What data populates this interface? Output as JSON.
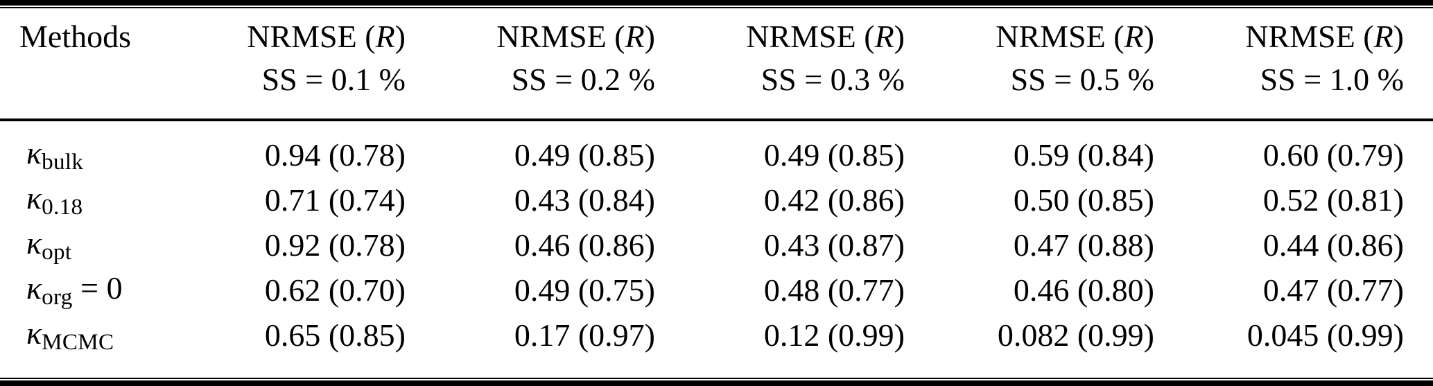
{
  "colors": {
    "text": "#000000",
    "background": "#ffffff",
    "rule": "#000000"
  },
  "table": {
    "header": {
      "method_col": "Methods",
      "cols": [
        {
          "metric_pre": "NRMSE (",
          "metric_italic": "R",
          "metric_post": ")",
          "condition": "SS = 0.1 %"
        },
        {
          "metric_pre": "NRMSE (",
          "metric_italic": "R",
          "metric_post": ")",
          "condition": "SS = 0.2 %"
        },
        {
          "metric_pre": "NRMSE (",
          "metric_italic": "R",
          "metric_post": ")",
          "condition": "SS = 0.3 %"
        },
        {
          "metric_pre": "NRMSE (",
          "metric_italic": "R",
          "metric_post": ")",
          "condition": "SS = 0.5 %"
        },
        {
          "metric_pre": "NRMSE (",
          "metric_italic": "R",
          "metric_post": ")",
          "condition": "SS = 1.0 %"
        }
      ]
    },
    "rows": [
      {
        "label": {
          "symbol": "κ",
          "subscript": "bulk",
          "suffix": ""
        },
        "values": [
          "0.94 (0.78)",
          "0.49 (0.85)",
          "0.49 (0.85)",
          "0.59 (0.84)",
          "0.60 (0.79)"
        ]
      },
      {
        "label": {
          "symbol": "κ",
          "subscript": "0.18",
          "suffix": ""
        },
        "values": [
          "0.71 (0.74)",
          "0.43 (0.84)",
          "0.42 (0.86)",
          "0.50 (0.85)",
          "0.52 (0.81)"
        ]
      },
      {
        "label": {
          "symbol": "κ",
          "subscript": "opt",
          "suffix": ""
        },
        "values": [
          "0.92 (0.78)",
          "0.46 (0.86)",
          "0.43 (0.87)",
          "0.47 (0.88)",
          "0.44 (0.86)"
        ]
      },
      {
        "label": {
          "symbol": "κ",
          "subscript": "org",
          "suffix": " = 0"
        },
        "values": [
          "0.62 (0.70)",
          "0.49 (0.75)",
          "0.48 (0.77)",
          "0.46 (0.80)",
          "0.47 (0.77)"
        ]
      },
      {
        "label": {
          "symbol": "κ",
          "subscript": "MCMC",
          "suffix": ""
        },
        "values": [
          "0.65 (0.85)",
          "0.17 (0.97)",
          "0.12 (0.99)",
          "0.082 (0.99)",
          "0.045 (0.99)"
        ]
      }
    ]
  },
  "chart_data": {
    "type": "table",
    "columns": [
      "Methods",
      "NRMSE (R) SS = 0.1 %",
      "NRMSE (R) SS = 0.2 %",
      "NRMSE (R) SS = 0.3 %",
      "NRMSE (R) SS = 0.5 %",
      "NRMSE (R) SS = 1.0 %"
    ],
    "rows": [
      [
        "κ_bulk",
        "0.94 (0.78)",
        "0.49 (0.85)",
        "0.49 (0.85)",
        "0.59 (0.84)",
        "0.60 (0.79)"
      ],
      [
        "κ_0.18",
        "0.71 (0.74)",
        "0.43 (0.84)",
        "0.42 (0.86)",
        "0.50 (0.85)",
        "0.52 (0.81)"
      ],
      [
        "κ_opt",
        "0.92 (0.78)",
        "0.46 (0.86)",
        "0.43 (0.87)",
        "0.47 (0.88)",
        "0.44 (0.86)"
      ],
      [
        "κ_org = 0",
        "0.62 (0.70)",
        "0.49 (0.75)",
        "0.48 (0.77)",
        "0.46 (0.80)",
        "0.47 (0.77)"
      ],
      [
        "κ_MCMC",
        "0.65 (0.85)",
        "0.17 (0.97)",
        "0.12 (0.99)",
        "0.082 (0.99)",
        "0.045 (0.99)"
      ]
    ]
  }
}
